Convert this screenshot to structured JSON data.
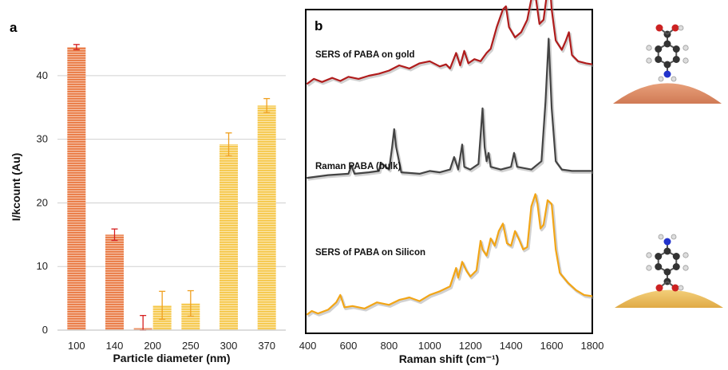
{
  "figure": {
    "panel_a_label": "a",
    "panel_b_label": "b"
  },
  "chart_data": [
    {
      "type": "bar",
      "panel": "a",
      "categories": [
        "100",
        "140",
        "200",
        "250",
        "300",
        "370"
      ],
      "series": [
        {
          "color": "#e8733a",
          "bars": [
            {
              "category": "100",
              "value": 44.5,
              "error": 0.4,
              "offset": 0
            },
            {
              "category": "140",
              "value": 15.0,
              "error": 0.9,
              "offset": 0
            },
            {
              "category": "200",
              "value": 0.3,
              "error": 2.0,
              "offset": -1
            }
          ]
        },
        {
          "color": "#f5c542",
          "bars": [
            {
              "category": "200",
              "value": 3.9,
              "error": 2.2,
              "offset": 1
            },
            {
              "category": "250",
              "value": 4.2,
              "error": 2.0,
              "offset": 0
            },
            {
              "category": "300",
              "value": 29.2,
              "error": 1.8,
              "offset": 0
            },
            {
              "category": "370",
              "value": 35.3,
              "error": 1.1,
              "offset": 0
            }
          ]
        }
      ],
      "xlabel": "Particle diameter (nm)",
      "ylabel": "I/kcount (Au)",
      "ylim": [
        0,
        45
      ],
      "yticks": [
        0,
        10,
        20,
        30,
        40
      ],
      "grid": true
    },
    {
      "type": "line",
      "panel": "b",
      "xlabel": "Raman shift (cm⁻¹)",
      "xlim": [
        390,
        1800
      ],
      "xticks": [
        400,
        600,
        800,
        1000,
        1200,
        1400,
        1600,
        1800
      ],
      "y_units": "arbitrary (stacked, offset traces)",
      "series": [
        {
          "name": "SERS of PABA on gold",
          "color": "#b01c1c",
          "base": 0.77,
          "scale": 0.32,
          "x": [
            395,
            430,
            470,
            520,
            560,
            600,
            650,
            700,
            750,
            800,
            850,
            900,
            950,
            1000,
            1050,
            1080,
            1100,
            1130,
            1150,
            1170,
            1190,
            1220,
            1250,
            1280,
            1300,
            1330,
            1360,
            1375,
            1390,
            1420,
            1450,
            1480,
            1500,
            1520,
            1540,
            1560,
            1580,
            1590,
            1600,
            1620,
            1650,
            1670,
            1685,
            1700,
            1730,
            1770,
            1800
          ],
          "y": [
            0.0,
            0.05,
            0.02,
            0.06,
            0.03,
            0.07,
            0.05,
            0.08,
            0.1,
            0.13,
            0.18,
            0.15,
            0.2,
            0.22,
            0.17,
            0.19,
            0.15,
            0.3,
            0.18,
            0.32,
            0.2,
            0.24,
            0.22,
            0.3,
            0.34,
            0.55,
            0.72,
            0.75,
            0.55,
            0.45,
            0.5,
            0.62,
            0.82,
            0.86,
            0.58,
            0.62,
            0.92,
            1.0,
            0.72,
            0.42,
            0.33,
            0.42,
            0.5,
            0.28,
            0.22,
            0.2,
            0.19
          ]
        },
        {
          "name": "Raman PABA (bulk)",
          "color": "#444444",
          "base": 0.48,
          "scale": 0.43,
          "x": [
            395,
            500,
            600,
            615,
            630,
            700,
            750,
            760,
            800,
            815,
            825,
            835,
            860,
            950,
            1000,
            1050,
            1100,
            1120,
            1140,
            1160,
            1170,
            1200,
            1240,
            1260,
            1270,
            1280,
            1290,
            1300,
            1350,
            1400,
            1415,
            1430,
            1500,
            1550,
            1570,
            1585,
            1600,
            1620,
            1650,
            1700,
            1750,
            1800
          ],
          "y": [
            0.0,
            0.02,
            0.03,
            0.09,
            0.03,
            0.04,
            0.05,
            0.11,
            0.06,
            0.22,
            0.35,
            0.22,
            0.04,
            0.03,
            0.05,
            0.04,
            0.06,
            0.15,
            0.06,
            0.24,
            0.08,
            0.06,
            0.1,
            0.5,
            0.22,
            0.12,
            0.18,
            0.08,
            0.06,
            0.08,
            0.18,
            0.08,
            0.06,
            0.12,
            0.55,
            1.0,
            0.5,
            0.12,
            0.06,
            0.05,
            0.05,
            0.05
          ]
        },
        {
          "name": "SERS of PABA on Silicon",
          "color": "#f2a516",
          "base": 0.05,
          "scale": 0.38,
          "x": [
            395,
            420,
            450,
            500,
            540,
            560,
            580,
            620,
            680,
            740,
            800,
            850,
            900,
            950,
            1000,
            1050,
            1100,
            1130,
            1140,
            1160,
            1180,
            1200,
            1230,
            1250,
            1260,
            1280,
            1300,
            1320,
            1340,
            1360,
            1380,
            1400,
            1420,
            1440,
            1460,
            1480,
            1500,
            1520,
            1530,
            1545,
            1560,
            1580,
            1600,
            1620,
            1640,
            1680,
            1720,
            1760,
            1800
          ],
          "y": [
            0.02,
            0.05,
            0.03,
            0.06,
            0.12,
            0.18,
            0.08,
            0.09,
            0.07,
            0.12,
            0.1,
            0.14,
            0.16,
            0.13,
            0.18,
            0.21,
            0.25,
            0.4,
            0.32,
            0.45,
            0.38,
            0.33,
            0.38,
            0.62,
            0.55,
            0.5,
            0.64,
            0.58,
            0.7,
            0.76,
            0.6,
            0.58,
            0.7,
            0.63,
            0.55,
            0.57,
            0.9,
            1.0,
            0.92,
            0.72,
            0.75,
            0.95,
            0.92,
            0.55,
            0.36,
            0.28,
            0.22,
            0.18,
            0.17
          ]
        }
      ]
    }
  ]
}
